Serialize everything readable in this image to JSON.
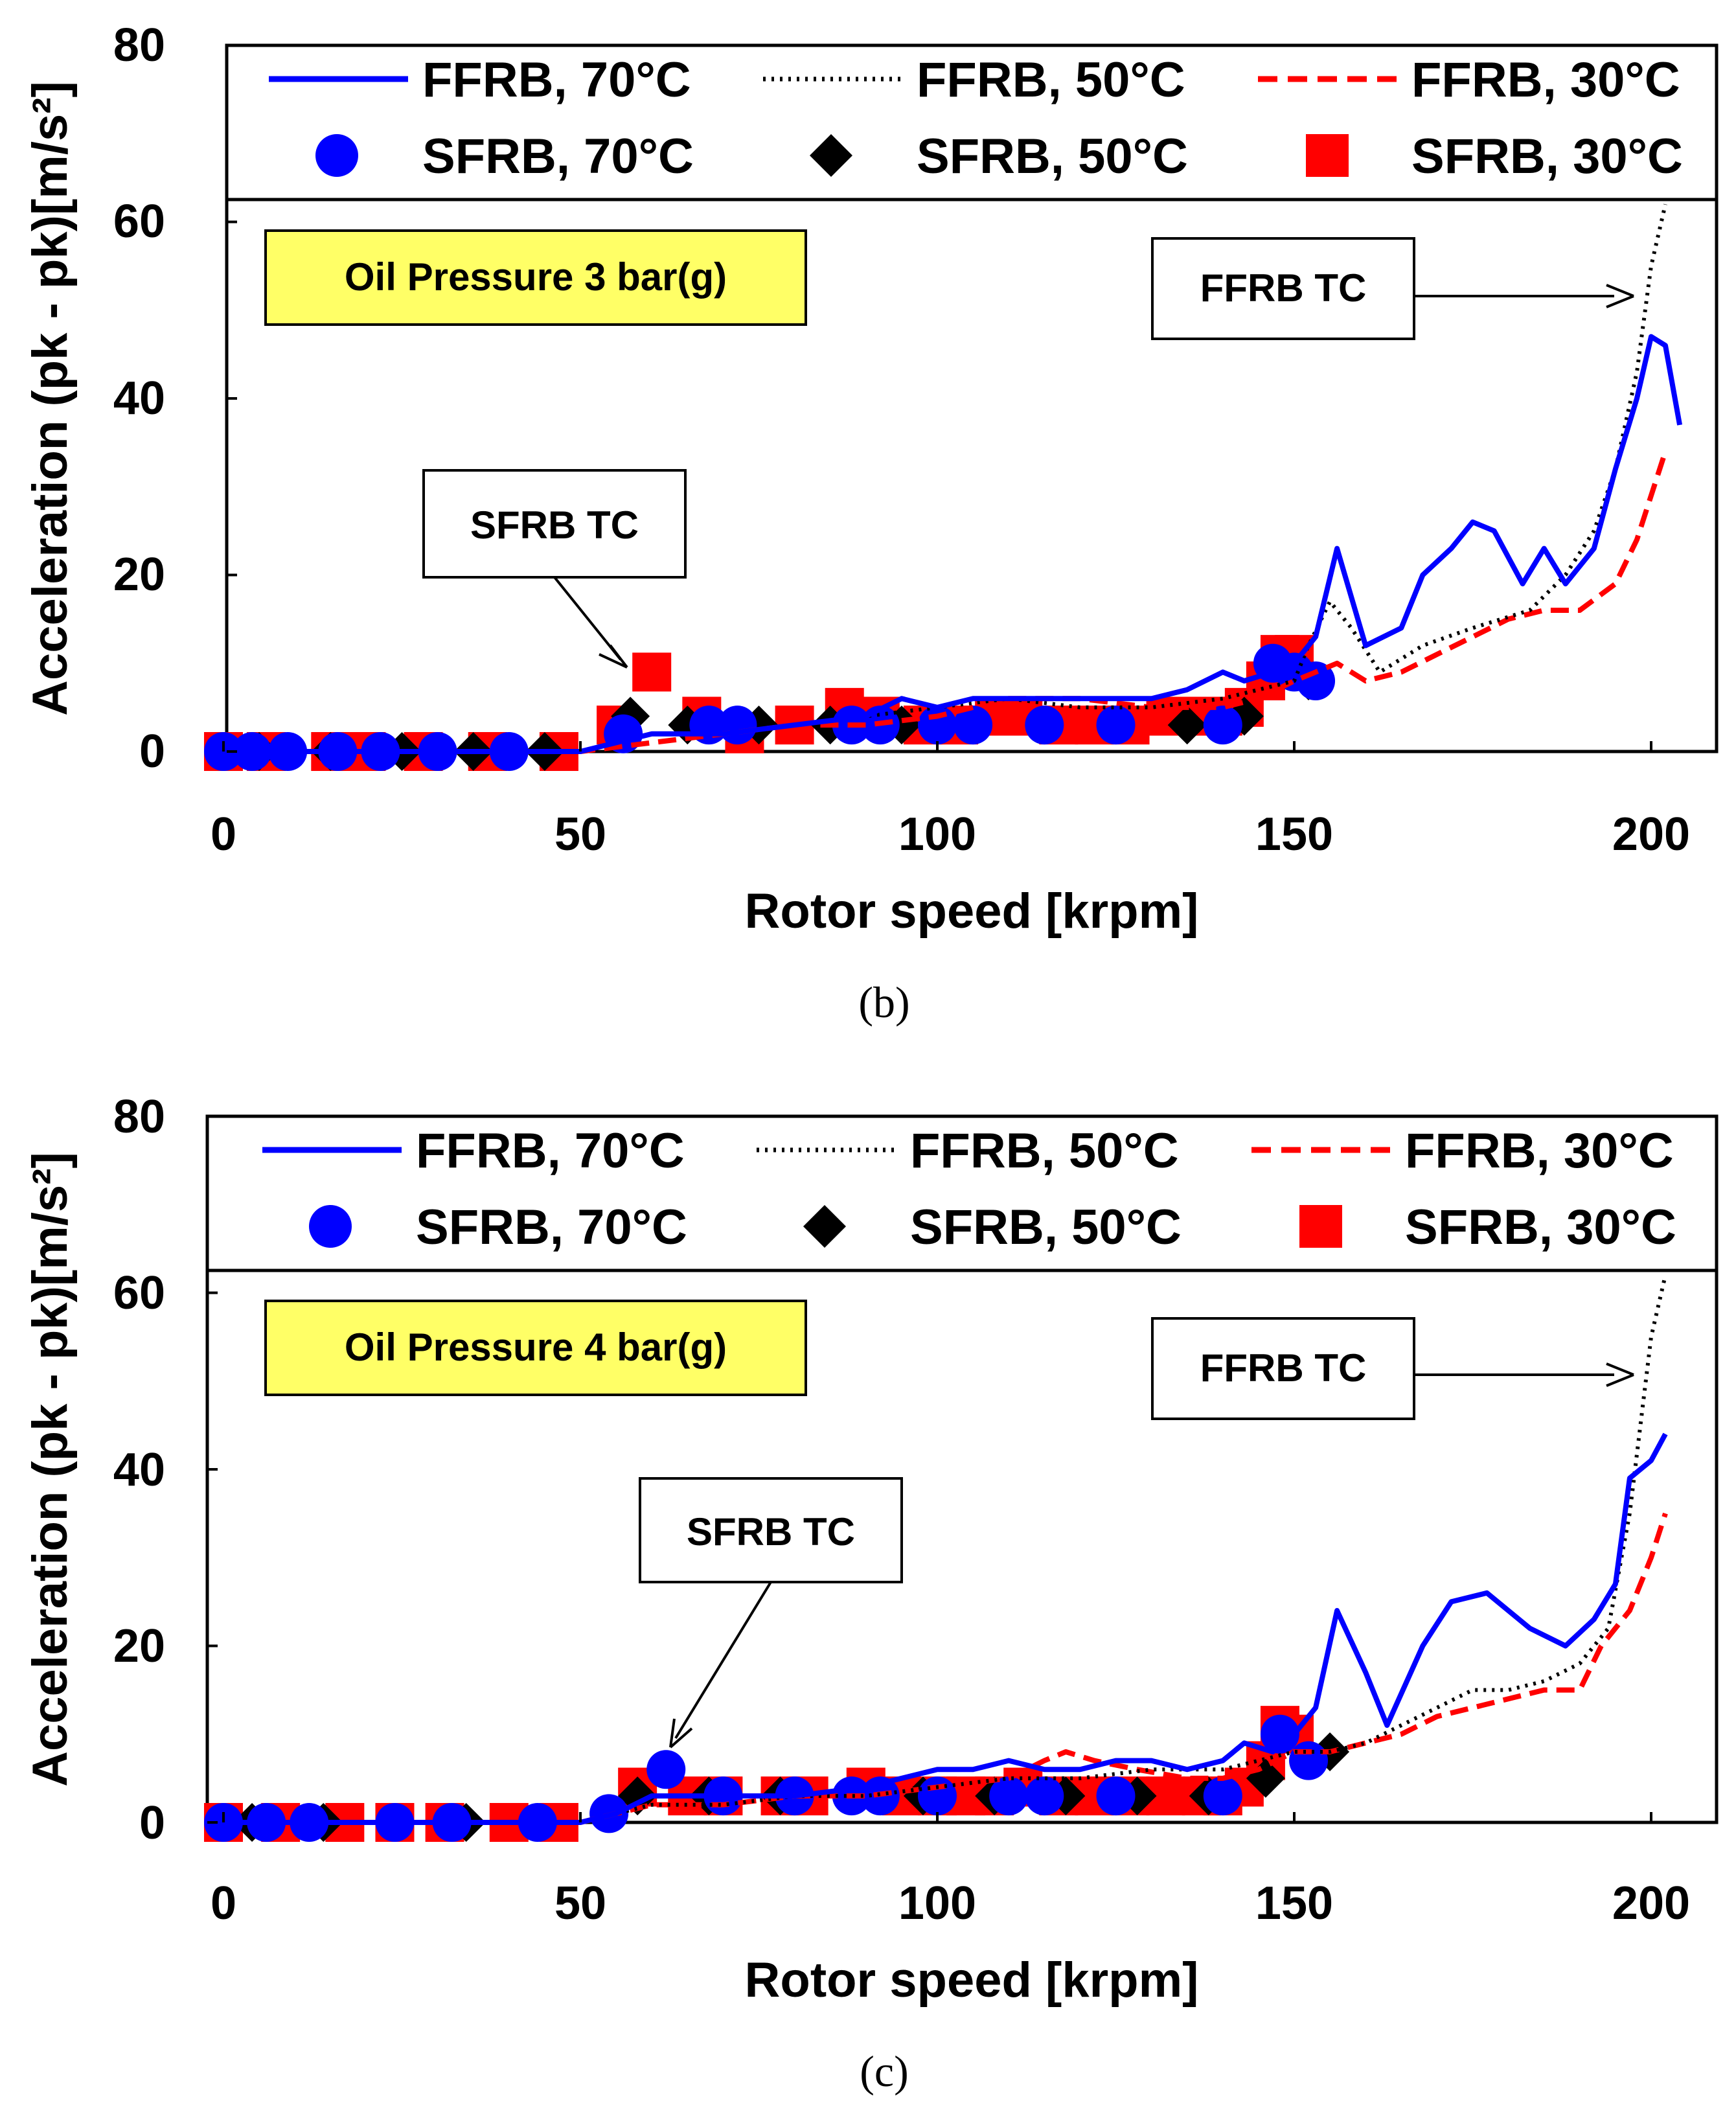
{
  "chart_data": [
    {
      "type": "line",
      "caption": "(b)",
      "condition_label": "Oil Pressure 3 bar(g)",
      "xlabel": "Rotor speed  [krpm]",
      "ylabel": "Acceleration (pk - pk)[m/s²]",
      "xlim": [
        0,
        200
      ],
      "ylim": [
        0,
        80
      ],
      "xticks": [
        "0",
        "50",
        "100",
        "150",
        "200"
      ],
      "yticks": [
        "0",
        "20",
        "40",
        "60",
        "80"
      ],
      "grid": false,
      "legend": "top",
      "colors": {
        "blue": "#0000ff",
        "black": "#000000",
        "red": "#ff0000"
      },
      "annotations": [
        {
          "text": "FFRB TC",
          "points_to": [
            197,
            51
          ]
        },
        {
          "text": "SFRB TC",
          "points_to": [
            57,
            10
          ]
        }
      ],
      "series": [
        {
          "name": "FFRB, 70°C",
          "kind": "solid-line",
          "color": "#0000ff",
          "x": [
            0,
            10,
            20,
            30,
            40,
            50,
            60,
            70,
            80,
            90,
            95,
            100,
            105,
            110,
            115,
            120,
            125,
            130,
            135,
            140,
            143,
            147,
            150,
            153,
            156,
            160,
            165,
            168,
            172,
            175,
            178,
            182,
            185,
            188,
            192,
            195,
            198,
            200,
            202,
            204
          ],
          "y": [
            0,
            0,
            0,
            0,
            0,
            0,
            2,
            2,
            3,
            4,
            6,
            5,
            6,
            6,
            6,
            6,
            6,
            6,
            7,
            9,
            8,
            9,
            10,
            13,
            23,
            12,
            14,
            20,
            23,
            26,
            25,
            19,
            23,
            19,
            23,
            32,
            40,
            47,
            46,
            37
          ]
        },
        {
          "name": "FFRB, 50°C",
          "kind": "dotted-line",
          "color": "#000000",
          "x": [
            0,
            10,
            20,
            30,
            40,
            50,
            60,
            70,
            80,
            90,
            100,
            110,
            120,
            130,
            140,
            145,
            150,
            152,
            155,
            158,
            162,
            168,
            175,
            183,
            188,
            192,
            195,
            198,
            200,
            202
          ],
          "y": [
            0,
            0,
            0,
            0,
            0,
            0,
            2,
            2,
            3,
            4,
            5,
            6,
            5,
            5,
            6,
            7,
            8,
            12,
            17,
            14,
            9,
            12,
            14,
            16,
            20,
            25,
            32,
            43,
            55,
            62
          ]
        },
        {
          "name": "FFRB, 30°C",
          "kind": "dashed-line",
          "color": "#ff0000",
          "x": [
            0,
            10,
            20,
            30,
            40,
            50,
            60,
            70,
            80,
            90,
            100,
            110,
            120,
            130,
            140,
            145,
            150,
            153,
            156,
            160,
            165,
            170,
            175,
            180,
            185,
            190,
            195,
            198,
            200,
            202
          ],
          "y": [
            0,
            0,
            0,
            0,
            0,
            0,
            1,
            2,
            3,
            3,
            4,
            6,
            6,
            5,
            5,
            6,
            8,
            9,
            10,
            8,
            9,
            11,
            13,
            15,
            16,
            16,
            19,
            24,
            29,
            34
          ]
        },
        {
          "name": "SFRB, 70°C",
          "kind": "circle-marker",
          "color": "#0000ff",
          "x": [
            0,
            4,
            9,
            16,
            22,
            30,
            40,
            56,
            68,
            72,
            88,
            92,
            100,
            105,
            115,
            125,
            140,
            147,
            150,
            153
          ],
          "y": [
            0,
            0,
            0,
            0,
            0,
            0,
            0,
            2,
            3,
            3,
            3,
            3,
            3,
            3,
            3,
            3,
            3,
            10,
            9,
            8
          ]
        },
        {
          "name": "SFRB, 50°C",
          "kind": "diamond-marker",
          "color": "#000000",
          "x": [
            5,
            15,
            25,
            35,
            45,
            57,
            65,
            75,
            85,
            95,
            105,
            115,
            125,
            135,
            143,
            152
          ],
          "y": [
            0,
            0,
            0,
            0,
            0,
            4,
            3,
            3,
            3,
            3,
            3,
            3,
            3,
            3,
            4,
            8
          ]
        },
        {
          "name": "SFRB, 30°C",
          "kind": "square-marker",
          "color": "#ff0000",
          "x": [
            0,
            6,
            15,
            20,
            28,
            37,
            47,
            55,
            60,
            67,
            73,
            80,
            87,
            92,
            98,
            103,
            108,
            112,
            117,
            122,
            127,
            132,
            137,
            140,
            143,
            146,
            148,
            150
          ],
          "y": [
            0,
            0,
            0,
            0,
            0,
            0,
            0,
            3,
            9,
            4,
            2,
            3,
            5,
            4,
            3,
            3,
            4,
            4,
            3,
            3,
            3,
            4,
            4,
            4,
            5,
            8,
            11,
            11
          ]
        }
      ]
    },
    {
      "type": "line",
      "caption": "(c)",
      "condition_label": "Oil Pressure 4 bar(g)",
      "xlabel": "Rotor speed  [krpm]",
      "ylabel": "Acceleration (pk - pk)[m/s²]",
      "xlim": [
        0,
        200
      ],
      "ylim": [
        0,
        80
      ],
      "xticks": [
        "0",
        "50",
        "100",
        "150",
        "200"
      ],
      "yticks": [
        "0",
        "20",
        "40",
        "60",
        "80"
      ],
      "grid": false,
      "legend": "top",
      "colors": {
        "blue": "#0000ff",
        "black": "#000000",
        "red": "#ff0000"
      },
      "annotations": [
        {
          "text": "FFRB TC",
          "points_to": [
            197,
            50
          ]
        },
        {
          "text": "SFRB TC",
          "points_to": [
            63,
            9
          ]
        }
      ],
      "series": [
        {
          "name": "FFRB, 70°C",
          "kind": "solid-line",
          "color": "#0000ff",
          "x": [
            0,
            10,
            20,
            30,
            40,
            50,
            55,
            60,
            65,
            70,
            80,
            90,
            95,
            100,
            105,
            110,
            115,
            120,
            125,
            130,
            135,
            140,
            143,
            147,
            150,
            153,
            156,
            160,
            163,
            168,
            172,
            177,
            183,
            188,
            192,
            195,
            197,
            200,
            202
          ],
          "y": [
            0,
            0,
            0,
            0,
            0,
            0,
            1,
            3,
            3,
            3,
            3,
            4,
            5,
            6,
            6,
            7,
            6,
            6,
            7,
            7,
            6,
            7,
            9,
            8,
            10,
            13,
            24,
            17,
            11,
            20,
            25,
            26,
            22,
            20,
            23,
            27,
            39,
            41,
            44
          ]
        },
        {
          "name": "FFRB, 50°C",
          "kind": "dotted-line",
          "color": "#000000",
          "x": [
            0,
            10,
            20,
            30,
            40,
            50,
            60,
            70,
            80,
            90,
            100,
            110,
            120,
            130,
            140,
            145,
            150,
            155,
            160,
            165,
            170,
            175,
            180,
            185,
            190,
            194,
            197,
            200,
            202
          ],
          "y": [
            0,
            0,
            0,
            0,
            0,
            0,
            2,
            2,
            3,
            3,
            4,
            5,
            5,
            6,
            6,
            7,
            8,
            8,
            9,
            11,
            13,
            15,
            15,
            16,
            18,
            22,
            35,
            55,
            62
          ]
        },
        {
          "name": "FFRB, 30°C",
          "kind": "dashed-line",
          "color": "#ff0000",
          "x": [
            0,
            10,
            20,
            30,
            40,
            50,
            60,
            70,
            80,
            90,
            100,
            110,
            115,
            118,
            122,
            128,
            135,
            140,
            145,
            150,
            155,
            160,
            165,
            170,
            175,
            180,
            185,
            190,
            193,
            197,
            200,
            202
          ],
          "y": [
            0,
            0,
            0,
            0,
            0,
            0,
            2,
            2,
            3,
            3,
            4,
            5,
            7,
            8,
            7,
            6,
            5,
            5,
            6,
            8,
            8,
            9,
            10,
            12,
            13,
            14,
            15,
            15,
            20,
            24,
            30,
            35
          ]
        },
        {
          "name": "SFRB, 70°C",
          "kind": "circle-marker",
          "color": "#0000ff",
          "x": [
            0,
            6,
            12,
            24,
            32,
            44,
            54,
            62,
            70,
            80,
            88,
            92,
            100,
            110,
            115,
            125,
            140,
            148,
            152
          ],
          "y": [
            0,
            0,
            0,
            0,
            0,
            0,
            1,
            6,
            3,
            3,
            3,
            3,
            3,
            3,
            3,
            3,
            3,
            10,
            7
          ]
        },
        {
          "name": "SFRB, 50°C",
          "kind": "diamond-marker",
          "color": "#000000",
          "x": [
            4,
            14,
            24,
            34,
            44,
            58,
            68,
            78,
            88,
            98,
            108,
            118,
            128,
            138,
            146,
            155
          ],
          "y": [
            0,
            0,
            0,
            0,
            0,
            3,
            3,
            3,
            3,
            3,
            3,
            3,
            3,
            3,
            5,
            8
          ]
        },
        {
          "name": "SFRB, 30°C",
          "kind": "square-marker",
          "color": "#ff0000",
          "x": [
            0,
            8,
            17,
            24,
            31,
            40,
            47,
            58,
            65,
            70,
            78,
            82,
            90,
            95,
            100,
            104,
            108,
            112,
            117,
            122,
            127,
            132,
            137,
            140,
            143,
            146,
            148,
            150
          ],
          "y": [
            0,
            0,
            0,
            0,
            0,
            0,
            0,
            4,
            3,
            3,
            3,
            3,
            4,
            3,
            3,
            3,
            3,
            4,
            3,
            3,
            3,
            3,
            3,
            3,
            4,
            7,
            11,
            10
          ]
        }
      ]
    }
  ]
}
